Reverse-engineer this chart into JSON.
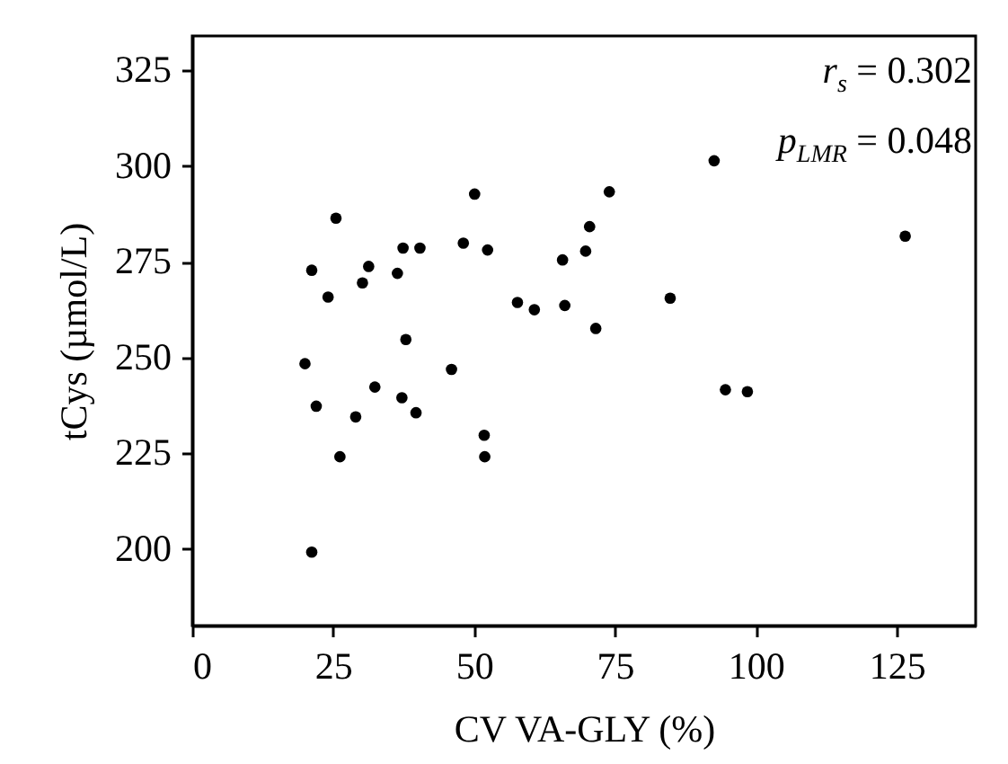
{
  "chart_data": {
    "type": "scatter",
    "xlabel": "CV VA-GLY (%)",
    "ylabel": "tCys (µmol/L)",
    "x": [
      21.2,
      25.5,
      24.1,
      20.0,
      22.0,
      21.2,
      26.2,
      29.0,
      30.2,
      31.3,
      32.4,
      36.4,
      37.4,
      40.4,
      37.9,
      37.2,
      39.7,
      46.0,
      48.1,
      50.1,
      52.4,
      51.8,
      51.9,
      57.7,
      60.7,
      65.7,
      66.1,
      69.8,
      70.5,
      71.6,
      74.0,
      84.8,
      92.6,
      94.6,
      98.5,
      126.5
    ],
    "values": [
      272.8,
      286.4,
      265.8,
      248.4,
      237.3,
      199.2,
      224.1,
      234.5,
      269.5,
      273.8,
      242.3,
      272.0,
      278.6,
      278.6,
      254.7,
      239.5,
      235.6,
      246.9,
      279.9,
      292.7,
      278.1,
      229.7,
      224.1,
      264.4,
      262.5,
      275.5,
      263.6,
      277.8,
      284.2,
      257.6,
      293.3,
      265.5,
      301.4,
      241.6,
      241.1,
      281.7
    ],
    "color": "#000000",
    "marker": "circle",
    "xlim": [
      0,
      139
    ],
    "xticks": [
      0,
      25,
      50,
      75,
      100,
      125
    ],
    "ylim": [
      180,
      334
    ],
    "yticks": [
      200,
      225,
      250,
      275,
      300,
      325
    ],
    "grid": false,
    "annotations": [
      "r$_{s}$ = 0.302",
      "p$_{LMR}$ = 0.048"
    ]
  }
}
